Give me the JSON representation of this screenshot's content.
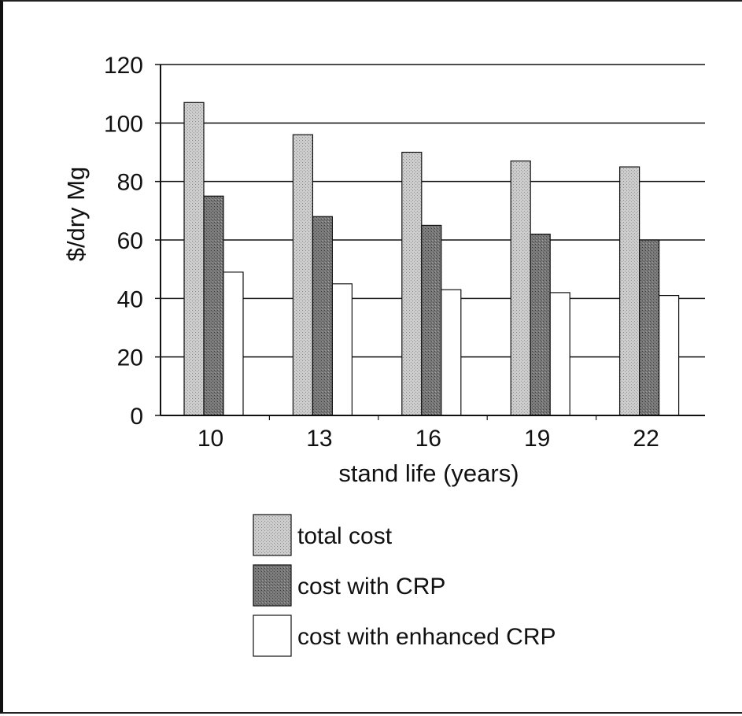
{
  "chart_data": {
    "type": "bar",
    "title": "",
    "xlabel": "stand life (years)",
    "ylabel": "$/dry Mg",
    "categories": [
      "10",
      "13",
      "16",
      "19",
      "22"
    ],
    "ylim": [
      0,
      120
    ],
    "yticks": [
      0,
      20,
      40,
      60,
      80,
      100,
      120
    ],
    "grid": true,
    "legend_position": "bottom",
    "series": [
      {
        "name": "total cost",
        "values": [
          107,
          96,
          90,
          87,
          85
        ],
        "color": "#c4c4c4"
      },
      {
        "name": "cost with CRP",
        "values": [
          75,
          68,
          65,
          62,
          60
        ],
        "color": "#6a6a6a"
      },
      {
        "name": "cost with enhanced CRP",
        "values": [
          49,
          45,
          43,
          42,
          41
        ],
        "color": "#ffffff"
      }
    ]
  }
}
